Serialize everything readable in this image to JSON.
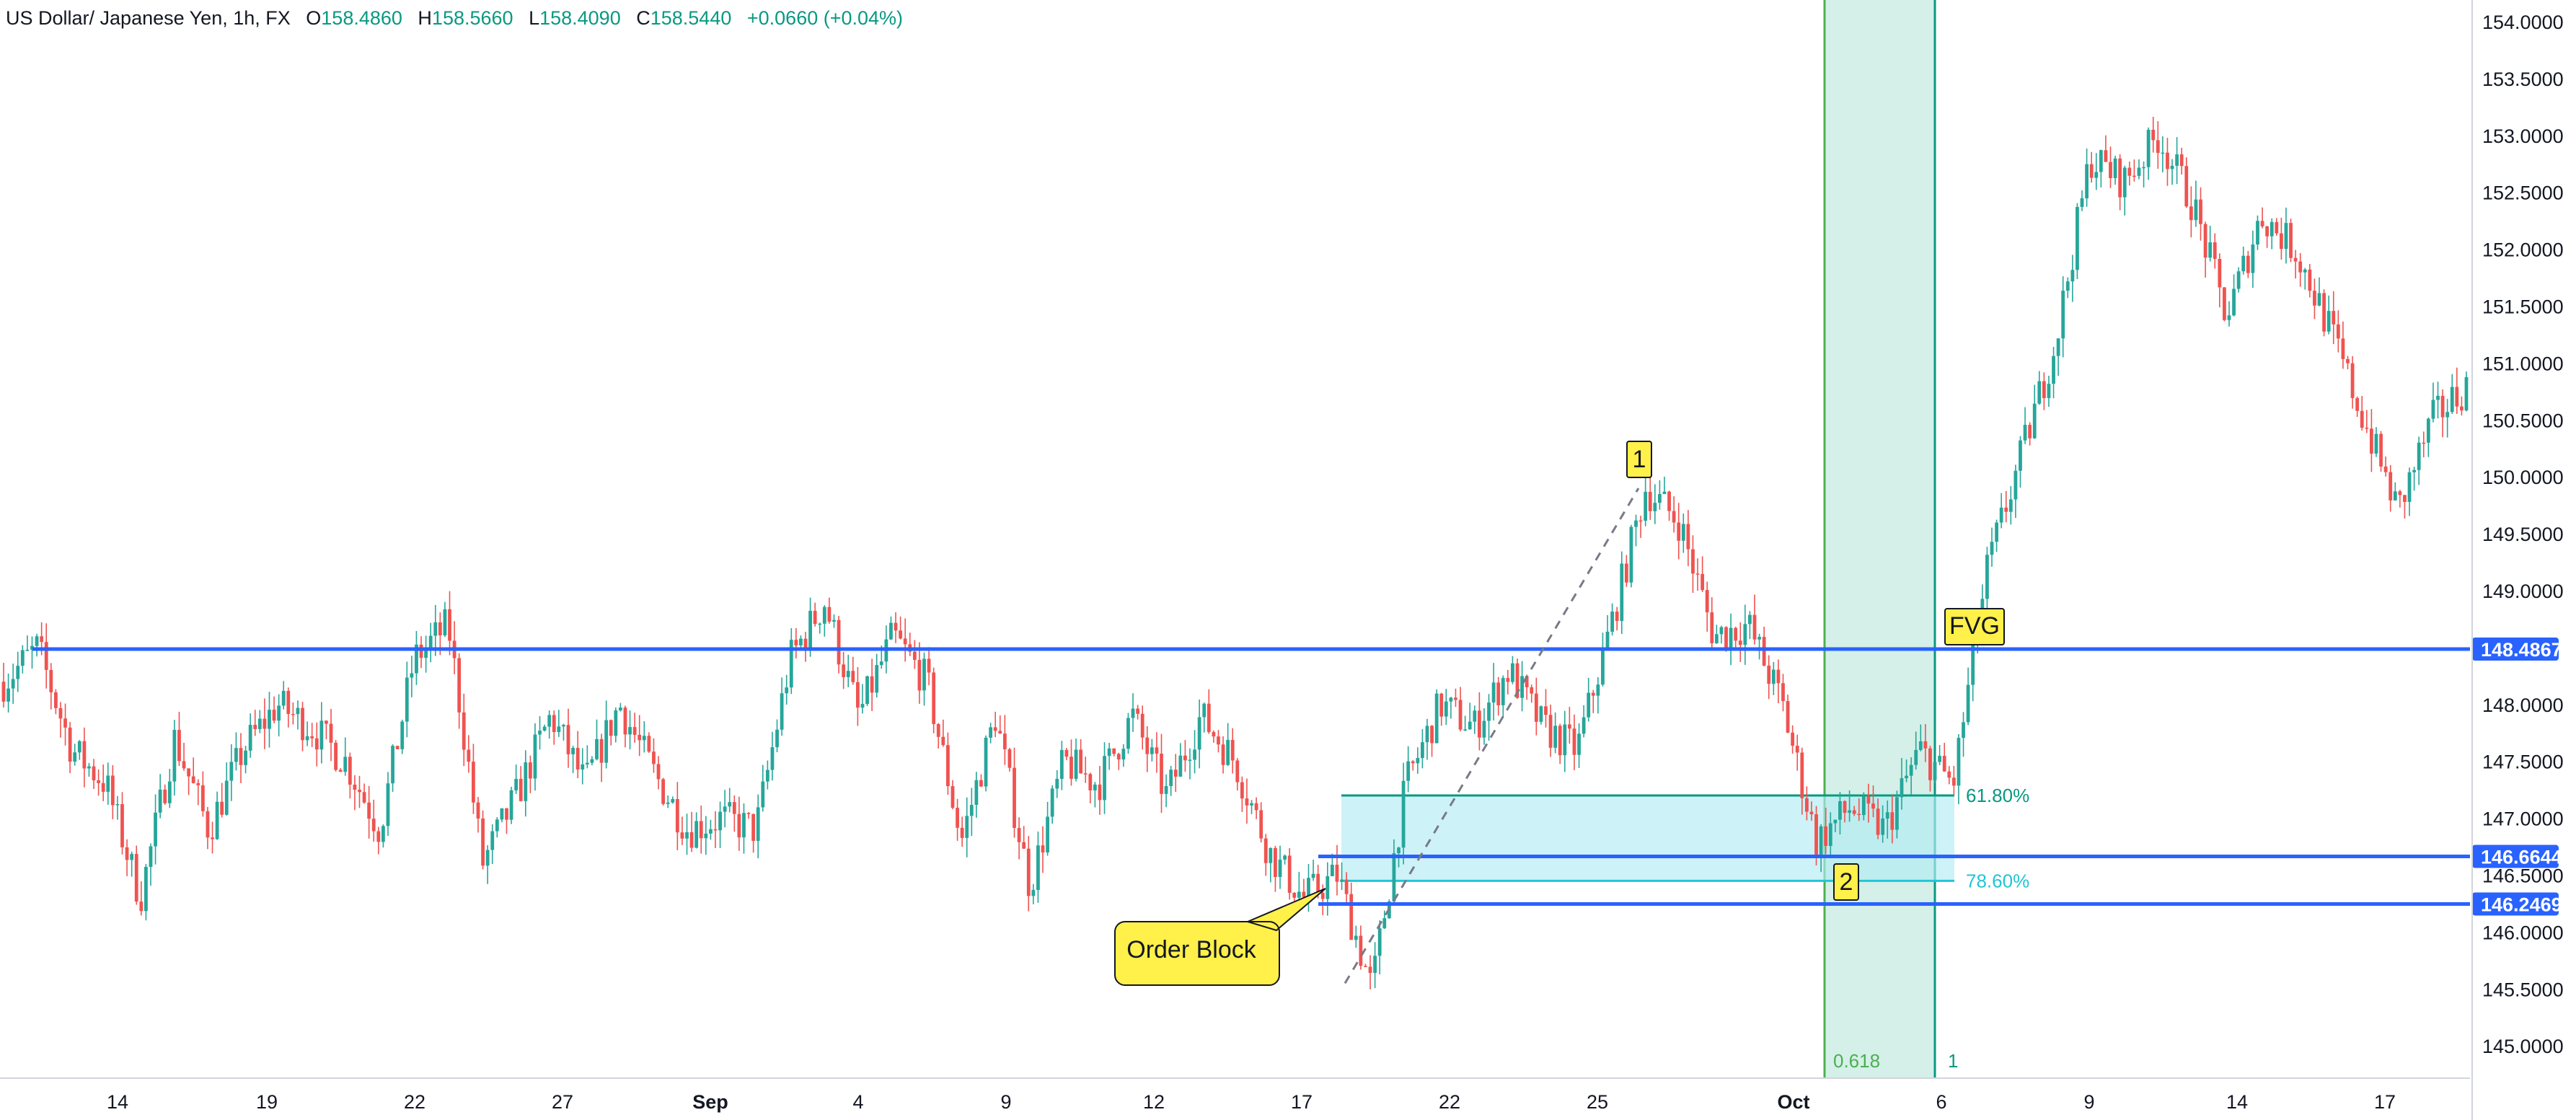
{
  "header": {
    "symbol": "US Dollar/ Japanese Yen, 1h, FX",
    "open_label": "O",
    "open": "158.4860",
    "high_label": "H",
    "high": "158.5660",
    "low_label": "L",
    "low": "158.4090",
    "close_label": "C",
    "close": "158.5440",
    "change": "+0.0660 (+0.04%)"
  },
  "colors": {
    "up": "#26a69a",
    "down": "#ef5350",
    "level_line": "#2962ff",
    "fib_zone": "#b2ebf2",
    "fib_618": "#089981",
    "fib_786": "#22c5d6",
    "time_fib": "#4caf50",
    "time_fib_zone": "#cfeee6",
    "marker_bg": "#fff04a",
    "grid": "#f0f3fa"
  },
  "chart_data": {
    "type": "candlestick",
    "title": "",
    "xlabel": "",
    "ylabel": "",
    "ylim": [
      144.75,
      154.2
    ],
    "grid": false,
    "x_ticks": [
      "14",
      "19",
      "22",
      "27",
      "Sep",
      "4",
      "9",
      "12",
      "17",
      "22",
      "25",
      "Oct",
      "6",
      "9",
      "14",
      "17"
    ],
    "y_ticks": [
      "154.0000",
      "153.5000",
      "153.0000",
      "152.5000",
      "152.0000",
      "151.5000",
      "151.0000",
      "150.5000",
      "150.0000",
      "149.5000",
      "149.0000",
      "148.0000",
      "147.5000",
      "147.0000",
      "146.5000",
      "146.0000",
      "145.5000",
      "145.0000"
    ],
    "price_path": [
      {
        "date": "Aug 9",
        "price": 148.2
      },
      {
        "date": "Aug 11",
        "price": 148.5
      },
      {
        "date": "Aug 12",
        "price": 147.6
      },
      {
        "date": "Aug 13",
        "price": 147.3
      },
      {
        "date": "Aug 14",
        "price": 146.3
      },
      {
        "date": "Aug 15",
        "price": 147.7
      },
      {
        "date": "Aug 16",
        "price": 146.9
      },
      {
        "date": "Aug 17",
        "price": 147.6
      },
      {
        "date": "Aug 18",
        "price": 148.0
      },
      {
        "date": "Aug 19",
        "price": 147.8
      },
      {
        "date": "Aug 20",
        "price": 147.5
      },
      {
        "date": "Aug 21",
        "price": 146.9
      },
      {
        "date": "Aug 22",
        "price": 148.4
      },
      {
        "date": "Aug 23",
        "price": 148.7
      },
      {
        "date": "Aug 23b",
        "price": 146.6
      },
      {
        "date": "Aug 24",
        "price": 147.2
      },
      {
        "date": "Aug 26",
        "price": 147.9
      },
      {
        "date": "Aug 27",
        "price": 147.3
      },
      {
        "date": "Aug 28",
        "price": 148.0
      },
      {
        "date": "Aug 29",
        "price": 147.4
      },
      {
        "date": "Aug 30",
        "price": 146.9
      },
      {
        "date": "Aug 31",
        "price": 147.0
      },
      {
        "date": "Sep 1",
        "price": 146.9
      },
      {
        "date": "Sep 2",
        "price": 148.4
      },
      {
        "date": "Sep 3",
        "price": 148.9
      },
      {
        "date": "Sep 4",
        "price": 147.9
      },
      {
        "date": "Sep 5",
        "price": 148.6
      },
      {
        "date": "Sep 6",
        "price": 148.2
      },
      {
        "date": "Sep 7",
        "price": 146.8
      },
      {
        "date": "Sep 8",
        "price": 147.9
      },
      {
        "date": "Sep 9",
        "price": 146.4
      },
      {
        "date": "Sep 10",
        "price": 147.5
      },
      {
        "date": "Sep 11",
        "price": 147.3
      },
      {
        "date": "Sep 12",
        "price": 147.9
      },
      {
        "date": "Sep 13",
        "price": 147.2
      },
      {
        "date": "Sep 14",
        "price": 147.9
      },
      {
        "date": "Sep 15",
        "price": 147.5
      },
      {
        "date": "Sep 16",
        "price": 146.7
      },
      {
        "date": "Sep 17",
        "price": 146.3
      },
      {
        "date": "Sep 18",
        "price": 146.5
      },
      {
        "date": "Sep 18b",
        "price": 145.5
      },
      {
        "date": "Sep 19",
        "price": 147.3
      },
      {
        "date": "Sep 20",
        "price": 148.0
      },
      {
        "date": "Sep 21",
        "price": 147.8
      },
      {
        "date": "Sep 22",
        "price": 148.3
      },
      {
        "date": "Sep 23",
        "price": 147.8
      },
      {
        "date": "Sep 24",
        "price": 147.6
      },
      {
        "date": "Sep 25",
        "price": 148.7
      },
      {
        "date": "Sep 26",
        "price": 149.9
      },
      {
        "date": "Sep 27",
        "price": 149.6
      },
      {
        "date": "Sep 28",
        "price": 148.6
      },
      {
        "date": "Sep 29",
        "price": 148.7
      },
      {
        "date": "Sep 30",
        "price": 148.0
      },
      {
        "date": "Oct 1",
        "price": 146.8
      },
      {
        "date": "Oct 2",
        "price": 147.1
      },
      {
        "date": "Oct 3",
        "price": 146.9
      },
      {
        "date": "Oct 4",
        "price": 147.6
      },
      {
        "date": "Oct 5",
        "price": 147.3
      },
      {
        "date": "Oct 6",
        "price": 149.2
      },
      {
        "date": "Oct 7",
        "price": 150.2
      },
      {
        "date": "Oct 8",
        "price": 151.2
      },
      {
        "date": "Oct 9",
        "price": 152.8
      },
      {
        "date": "Oct 10",
        "price": 152.6
      },
      {
        "date": "Oct 11",
        "price": 153.0
      },
      {
        "date": "Oct 12",
        "price": 152.4
      },
      {
        "date": "Oct 13",
        "price": 151.4
      },
      {
        "date": "Oct 14",
        "price": 152.3
      },
      {
        "date": "Oct 15",
        "price": 152.0
      },
      {
        "date": "Oct 16",
        "price": 151.3
      },
      {
        "date": "Oct 17",
        "price": 150.5
      },
      {
        "date": "Oct 18",
        "price": 149.7
      },
      {
        "date": "Oct 19",
        "price": 150.5
      },
      {
        "date": "Oct 20",
        "price": 150.8
      }
    ],
    "horizontal_levels": [
      {
        "value": 148.4867,
        "label": "148.4867"
      },
      {
        "value": 146.6644,
        "label": "146.6644"
      },
      {
        "value": 146.2469,
        "label": "146.2469"
      }
    ],
    "fib_retracement": {
      "levels": [
        {
          "label": "61.80%",
          "value": 147.2
        },
        {
          "label": "78.60%",
          "value": 146.45
        }
      ]
    },
    "fib_time_zone": {
      "labels": [
        "0.618",
        "1"
      ]
    },
    "annotations": {
      "order_block": "Order Block",
      "fvg": "FVG",
      "point_1": "1",
      "point_2": "2"
    }
  }
}
